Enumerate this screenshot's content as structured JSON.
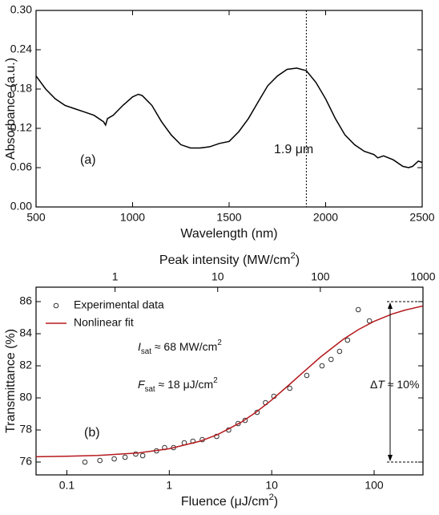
{
  "chart_data": [
    {
      "type": "line",
      "x_label": [
        "Wavelength (nm)"
      ],
      "y_label": [
        "Absorbance (a.u.)"
      ],
      "x": [
        500,
        550,
        600,
        650,
        700,
        750,
        800,
        850,
        860,
        870,
        900,
        950,
        1000,
        1030,
        1050,
        1100,
        1150,
        1200,
        1250,
        1300,
        1350,
        1400,
        1450,
        1500,
        1550,
        1600,
        1650,
        1700,
        1750,
        1800,
        1850,
        1900,
        1950,
        2000,
        2050,
        2100,
        2150,
        2200,
        2250,
        2270,
        2300,
        2350,
        2400,
        2430,
        2450,
        2480,
        2500
      ],
      "values": [
        0.2,
        0.18,
        0.165,
        0.155,
        0.15,
        0.145,
        0.14,
        0.13,
        0.125,
        0.135,
        0.14,
        0.155,
        0.168,
        0.172,
        0.17,
        0.155,
        0.13,
        0.11,
        0.095,
        0.09,
        0.09,
        0.092,
        0.097,
        0.1,
        0.115,
        0.135,
        0.16,
        0.185,
        0.2,
        0.21,
        0.212,
        0.208,
        0.19,
        0.165,
        0.135,
        0.11,
        0.095,
        0.085,
        0.08,
        0.075,
        0.078,
        0.072,
        0.062,
        0.06,
        0.062,
        0.07,
        0.068
      ],
      "color": "#000000",
      "xlim": [
        500,
        2500
      ],
      "xticks": [
        500,
        1000,
        1500,
        2000,
        2500
      ],
      "ylim": [
        0,
        0.3
      ],
      "yticks": [
        {
          "value": 0,
          "label": "0.00"
        },
        0.06,
        0.12,
        0.18,
        0.24,
        {
          "value": 0.3,
          "label": "0.30"
        }
      ],
      "vline": 1900,
      "annotations": [
        [
          "(a)"
        ],
        [
          "1.9 μm"
        ]
      ]
    },
    {
      "type": "scatter",
      "x_scale": "log",
      "x_label": [
        "Fluence (μJ/cm",
        {
          "text": "2",
          "style": "sup"
        },
        ")"
      ],
      "x2_label": [
        "Peak intensity (MW/cm",
        {
          "text": "2",
          "style": "sup"
        },
        ")"
      ],
      "y_label": [
        "Transmittance (%)"
      ],
      "xlim": [
        0.05,
        300
      ],
      "xticks": [
        0.1,
        1,
        10,
        100
      ],
      "x2lim": [
        0.17,
        1000
      ],
      "x2ticks": [
        1,
        10,
        100,
        1000
      ],
      "ylim": [
        75.2,
        86.9
      ],
      "yticks": [
        76,
        78,
        80,
        82,
        84,
        86
      ],
      "legend": "upper left",
      "series": [
        {
          "name": "Experimental data",
          "mode": "markers",
          "color": "#333333",
          "x": [
            0.15,
            0.21,
            0.29,
            0.37,
            0.47,
            0.55,
            0.75,
            0.9,
            1.1,
            1.4,
            1.7,
            2.1,
            2.9,
            3.8,
            4.7,
            5.5,
            7.2,
            8.7,
            10.5,
            15,
            22,
            31,
            38,
            46,
            55,
            70,
            90
          ],
          "values": [
            76.0,
            76.1,
            76.2,
            76.3,
            76.5,
            76.4,
            76.7,
            76.9,
            76.9,
            77.2,
            77.3,
            77.4,
            77.6,
            78.0,
            78.4,
            78.6,
            79.1,
            79.7,
            80.1,
            80.6,
            81.4,
            82.0,
            82.4,
            82.9,
            83.6,
            85.5,
            84.8
          ]
        },
        {
          "name": "Nonlinear fit",
          "mode": "line",
          "color": "#b5191c",
          "x": [
            0.05,
            0.1,
            0.2,
            0.5,
            1,
            2,
            3,
            5,
            7,
            10,
            15,
            20,
            30,
            50,
            70,
            100,
            150,
            200,
            300
          ],
          "values": [
            76.33,
            76.36,
            76.41,
            76.57,
            76.83,
            77.3,
            77.73,
            78.47,
            79.1,
            79.87,
            80.85,
            81.56,
            82.55,
            83.65,
            84.25,
            84.77,
            85.23,
            85.47,
            85.73
          ]
        }
      ],
      "range_lines": [
        76,
        86
      ],
      "annotations": [
        [
          "(b)"
        ],
        [
          {
            "text": "I",
            "style": "italic"
          },
          {
            "text": "sat",
            "style": "sub"
          },
          " ≈ 68 MW/cm",
          {
            "text": "2",
            "style": "sup"
          }
        ],
        [
          {
            "text": "F",
            "style": "italic"
          },
          {
            "text": "sat",
            "style": "sub"
          },
          " ≈ 18 μJ/cm",
          {
            "text": "2",
            "style": "sup"
          }
        ],
        [
          "Δ",
          {
            "text": "T",
            "style": "italic"
          },
          " ≈ 10%"
        ]
      ]
    }
  ]
}
